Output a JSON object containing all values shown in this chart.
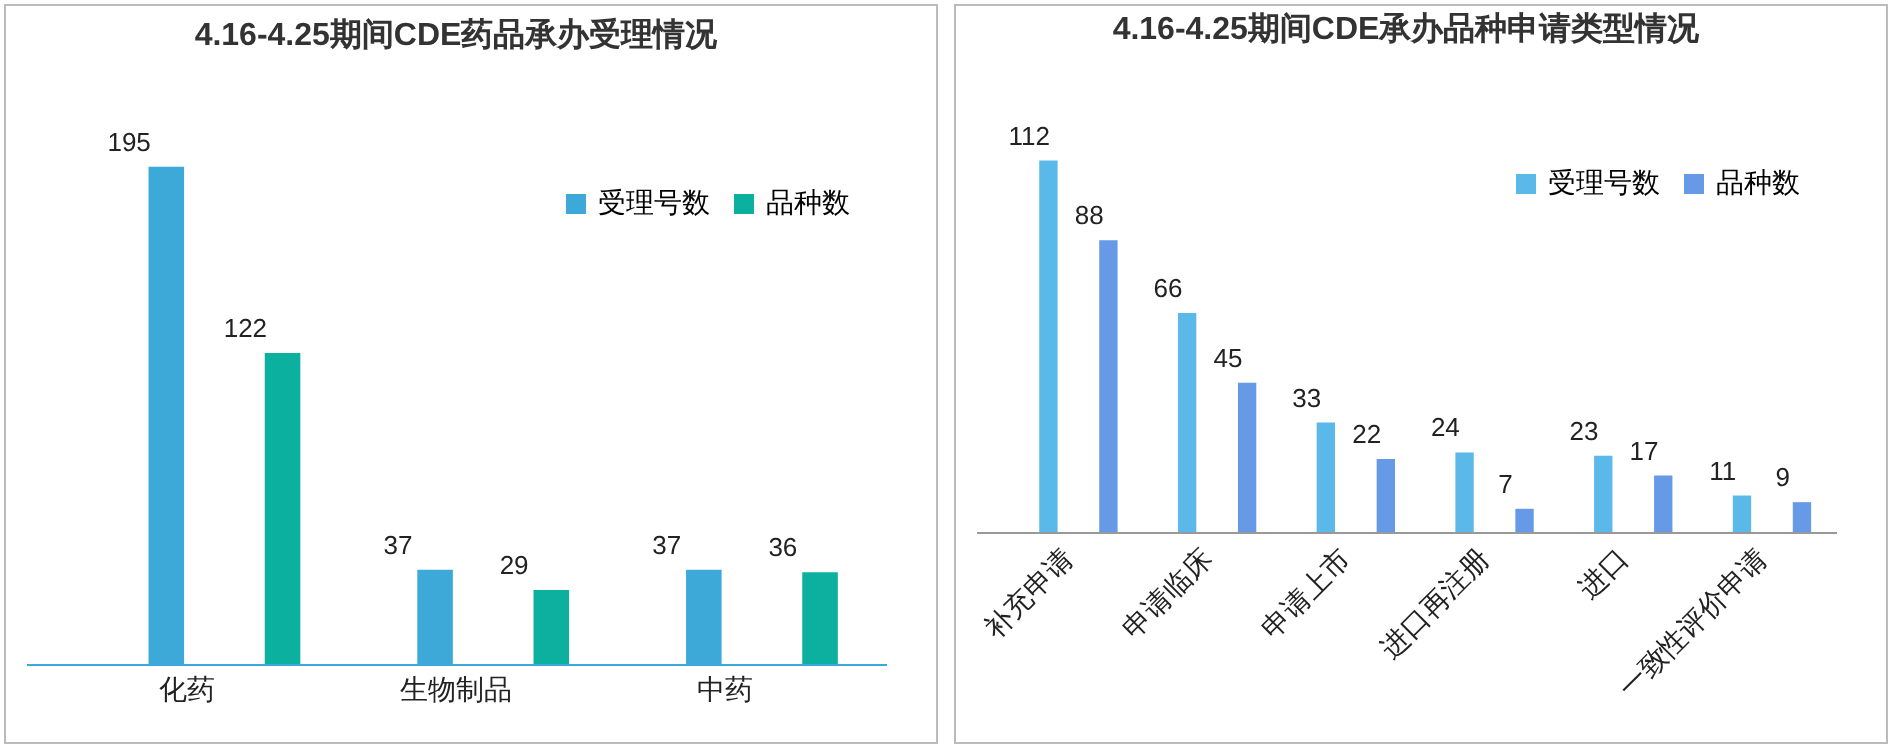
{
  "chart_data": [
    {
      "type": "bar",
      "title": "4.16-4.25期间CDE药品承办受理情况",
      "categories": [
        "化药",
        "生物制品",
        "中药"
      ],
      "series": [
        {
          "name": "受理号数",
          "color": "#3ca9d8",
          "values": [
            195,
            37,
            37
          ]
        },
        {
          "name": "品种数",
          "color": "#0bb09f",
          "values": [
            122,
            29,
            36
          ]
        }
      ],
      "data_labels": true,
      "legend": "top right"
    },
    {
      "type": "bar",
      "title": "4.16-4.25期间CDE承办品种申请类型情况",
      "categories": [
        "补充申请",
        "申请临床",
        "申请上市",
        "进口再注册",
        "进口",
        "一致性评价申请"
      ],
      "series": [
        {
          "name": "受理号数",
          "color": "#5ab9e8",
          "values": [
            112,
            66,
            33,
            24,
            23,
            11
          ]
        },
        {
          "name": "品种数",
          "color": "#6699e6",
          "values": [
            88,
            45,
            22,
            7,
            17,
            9
          ]
        }
      ],
      "data_labels": true,
      "legend": "top right"
    }
  ]
}
